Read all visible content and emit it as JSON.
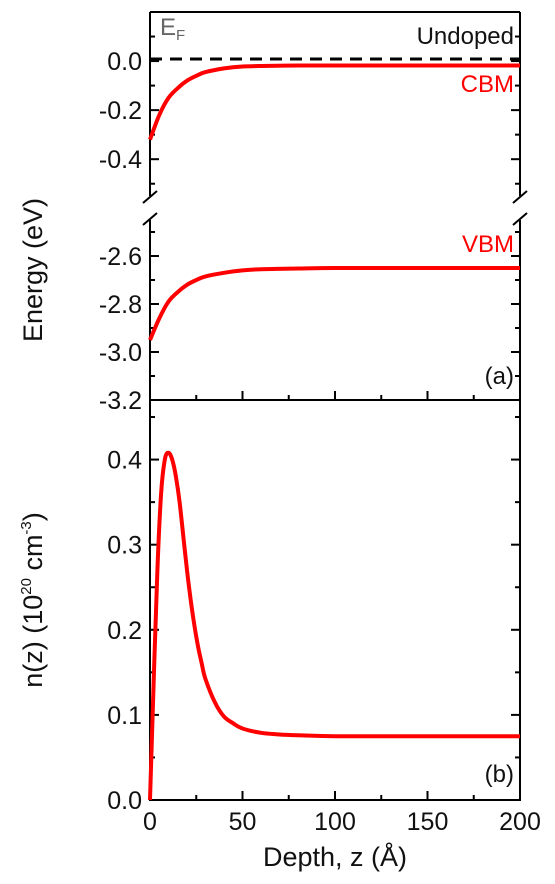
{
  "chart_data": [
    {
      "type": "line",
      "panel_label": "(a)",
      "x_range": [
        0,
        200
      ],
      "ylabel": "Energy (eV)",
      "y_axis_break": true,
      "upper_ylim": [
        -0.55,
        0.2
      ],
      "lower_ylim": [
        -3.2,
        -2.45
      ],
      "yticks_upper": [
        "0.0",
        "-0.2",
        "-0.4"
      ],
      "yticks_lower": [
        "-2.6",
        "-2.8",
        "-3.0",
        "-3.2"
      ],
      "annotations": {
        "fermi": "E",
        "fermi_sub": "F",
        "condition": "Undoped"
      },
      "series": [
        {
          "name": "CBM",
          "color": "#ff0000",
          "x": [
            0,
            5,
            10,
            15,
            20,
            25,
            30,
            40,
            50,
            60,
            80,
            100,
            150,
            200
          ],
          "y": [
            -0.32,
            -0.22,
            -0.15,
            -0.11,
            -0.08,
            -0.06,
            -0.045,
            -0.03,
            -0.022,
            -0.02,
            -0.018,
            -0.018,
            -0.018,
            -0.018
          ]
        },
        {
          "name": "VBM",
          "color": "#ff0000",
          "x": [
            0,
            5,
            10,
            15,
            20,
            25,
            30,
            40,
            50,
            60,
            80,
            100,
            150,
            200
          ],
          "y": [
            -2.95,
            -2.86,
            -2.79,
            -2.75,
            -2.72,
            -2.7,
            -2.685,
            -2.67,
            -2.66,
            -2.655,
            -2.652,
            -2.65,
            -2.65,
            -2.65
          ]
        },
        {
          "name": "E_F",
          "color": "#000000",
          "style": "dashed",
          "x": [
            0,
            200
          ],
          "y": [
            0,
            0
          ]
        }
      ]
    },
    {
      "type": "line",
      "panel_label": "(b)",
      "ylabel_main": "n(z) (10",
      "ylabel_sup1": "20",
      "ylabel_mid": " cm",
      "ylabel_sup2": "-3",
      "ylabel_end": ")",
      "xlabel": "Depth, z (Å)",
      "xlim": [
        0,
        200
      ],
      "ylim": [
        0,
        0.47
      ],
      "xticks": [
        "0",
        "50",
        "100",
        "150",
        "200"
      ],
      "yticks": [
        "0.0",
        "0.1",
        "0.2",
        "0.3",
        "0.4"
      ],
      "series": [
        {
          "color": "#ff0000",
          "x": [
            0,
            2,
            4,
            6,
            8,
            10,
            12,
            14,
            16,
            18,
            20,
            22,
            24,
            26,
            28,
            30,
            35,
            40,
            45,
            50,
            60,
            70,
            80,
            100,
            120,
            150,
            200
          ],
          "y": [
            0,
            0.14,
            0.27,
            0.36,
            0.4,
            0.408,
            0.4,
            0.38,
            0.35,
            0.31,
            0.27,
            0.235,
            0.205,
            0.18,
            0.16,
            0.142,
            0.115,
            0.098,
            0.09,
            0.084,
            0.079,
            0.077,
            0.076,
            0.075,
            0.075,
            0.075,
            0.075
          ]
        }
      ]
    }
  ]
}
